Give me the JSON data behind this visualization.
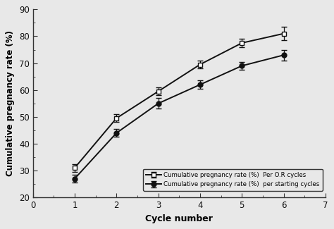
{
  "cycles": [
    1,
    2,
    3,
    4,
    5,
    6
  ],
  "or_cycles_y": [
    31,
    49.5,
    59.5,
    69.5,
    77.5,
    81
  ],
  "or_cycles_err": [
    1.5,
    1.5,
    1.5,
    1.5,
    1.5,
    2.5
  ],
  "start_cycles_y": [
    27,
    44,
    55,
    62,
    69,
    73
  ],
  "start_cycles_err": [
    1.5,
    1.5,
    2.0,
    1.5,
    1.5,
    2.0
  ],
  "xlabel": "Cycle number",
  "ylabel": "Cumulative pregnancy rate (%)",
  "xlim": [
    0,
    7
  ],
  "ylim": [
    20,
    90
  ],
  "yticks": [
    20,
    30,
    40,
    50,
    60,
    70,
    80,
    90
  ],
  "xticks": [
    0,
    1,
    2,
    3,
    4,
    5,
    6,
    7
  ],
  "legend_label_or": "Cumulative pregnancy rate (%)  Per O.R cycles",
  "legend_label_start": "Cumulative pregnancy rate (%)  per starting cycles",
  "line_color": "#111111",
  "marker_size_or": 5,
  "marker_size_start": 5,
  "marker_fill_or": "white",
  "marker_fill_start": "#111111",
  "linewidth": 1.4,
  "capsize": 3,
  "bg_color": "#e8e8e8"
}
